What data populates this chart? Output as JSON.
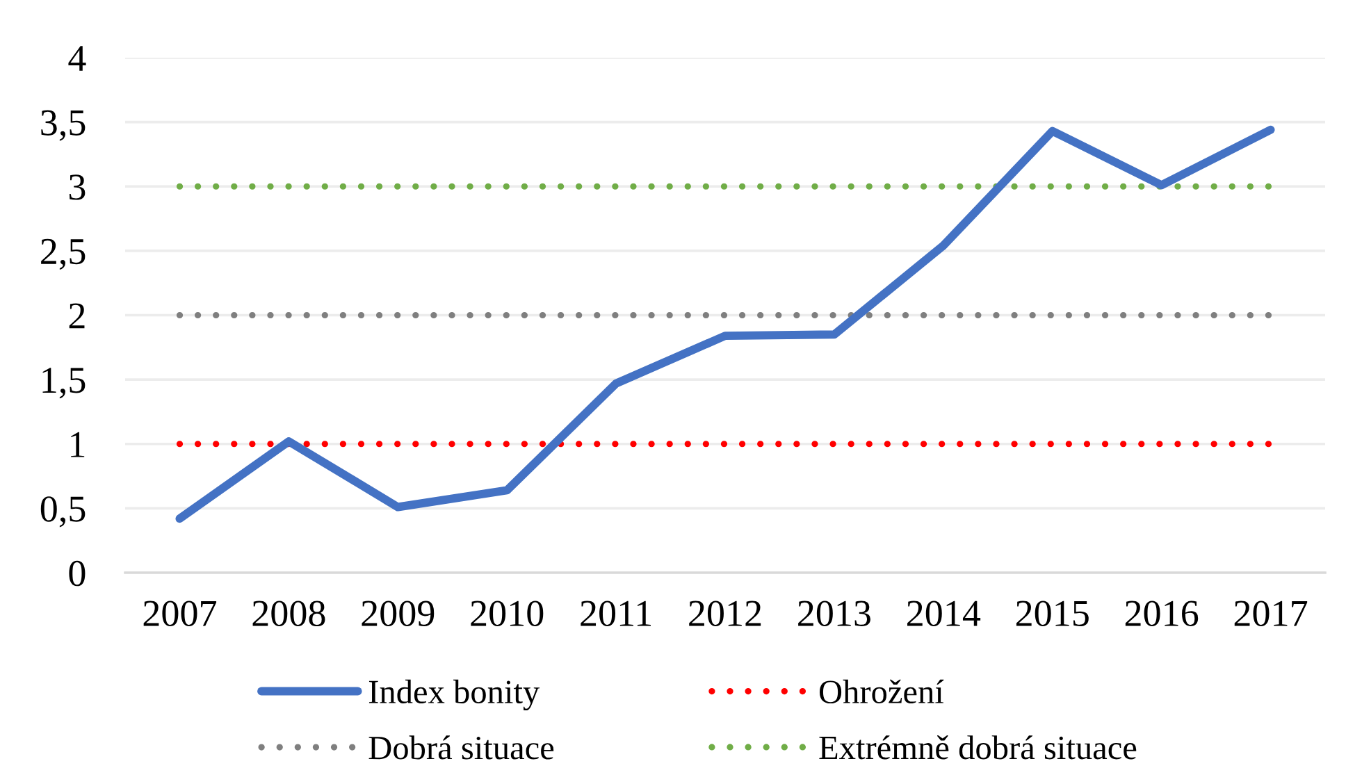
{
  "chart_data": {
    "type": "line",
    "categories": [
      "2007",
      "2008",
      "2009",
      "2010",
      "2011",
      "2012",
      "2013",
      "2014",
      "2015",
      "2016",
      "2017"
    ],
    "series": [
      {
        "name": "Index bonity",
        "color": "#4472c4",
        "values": [
          0.42,
          1.02,
          0.51,
          0.64,
          1.47,
          1.84,
          1.85,
          2.54,
          3.43,
          3.01,
          3.44
        ]
      },
      {
        "name": "Ohrožení",
        "color": "#ff0000",
        "line_style": "dotted",
        "values": [
          1,
          1,
          1,
          1,
          1,
          1,
          1,
          1,
          1,
          1,
          1
        ]
      },
      {
        "name": "Dobrá situace",
        "color": "#7f7f7f",
        "line_style": "dotted",
        "values": [
          2,
          2,
          2,
          2,
          2,
          2,
          2,
          2,
          2,
          2,
          2
        ]
      },
      {
        "name": "Extrémně dobrá situace",
        "color": "#70ad47",
        "line_style": "dotted",
        "values": [
          3,
          3,
          3,
          3,
          3,
          3,
          3,
          3,
          3,
          3,
          3
        ]
      }
    ],
    "ylim": [
      0,
      4
    ],
    "yticks": [
      0,
      {
        "value": 0.5,
        "label": "0,5"
      },
      1,
      {
        "value": 1.5,
        "label": "1,5"
      },
      2,
      {
        "value": 2.5,
        "label": "2,5"
      },
      3,
      {
        "value": 3.5,
        "label": "3,5"
      },
      4
    ],
    "grid": "y",
    "legend": "bottom",
    "line_style": "solid"
  }
}
